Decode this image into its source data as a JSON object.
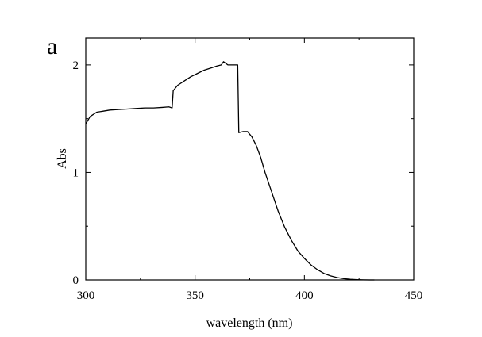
{
  "chart_data": {
    "type": "line",
    "panel_label": "a",
    "title": "",
    "xlabel": "wavelength (nm)",
    "ylabel": "Abs",
    "xlim": [
      300,
      450
    ],
    "ylim": [
      0,
      2.25
    ],
    "x_ticks": [
      300,
      350,
      400,
      450
    ],
    "x_tick_labels": [
      "300",
      "350",
      "400",
      "450"
    ],
    "y_ticks": [
      0,
      1,
      2
    ],
    "y_tick_labels": [
      "0",
      "1",
      "2"
    ],
    "grid": false,
    "legend": "none",
    "series": [
      {
        "color": "#000000",
        "x": [
          300,
          302,
          305,
          308,
          311,
          315,
          319,
          323,
          327,
          331,
          335,
          338,
          339.5,
          340,
          342,
          345,
          348,
          351,
          354,
          357,
          360,
          362,
          363,
          365,
          367,
          369,
          369.5,
          370,
          372,
          374,
          376,
          378,
          380,
          382,
          385,
          388,
          391,
          394,
          397,
          400,
          403,
          406,
          409,
          412,
          415,
          418,
          421,
          424,
          427,
          430,
          432
        ],
        "y": [
          1.45,
          1.52,
          1.56,
          1.57,
          1.58,
          1.585,
          1.59,
          1.595,
          1.6,
          1.6,
          1.605,
          1.61,
          1.6,
          1.76,
          1.81,
          1.85,
          1.89,
          1.92,
          1.95,
          1.97,
          1.99,
          2.0,
          2.03,
          2.0,
          2.0,
          2.0,
          2.0,
          1.37,
          1.38,
          1.38,
          1.33,
          1.25,
          1.14,
          1.0,
          0.82,
          0.64,
          0.49,
          0.37,
          0.27,
          0.2,
          0.14,
          0.095,
          0.06,
          0.038,
          0.022,
          0.012,
          0.006,
          0.003,
          0.001,
          0.0,
          0.0
        ]
      }
    ]
  }
}
